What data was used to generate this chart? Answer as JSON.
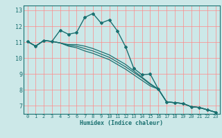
{
  "xlabel": "Humidex (Indice chaleur)",
  "background_color": "#cce8e8",
  "grid_color": "#ff6666",
  "line_color": "#1a7070",
  "xlim": [
    -0.5,
    23.5
  ],
  "ylim": [
    6.5,
    13.3
  ],
  "yticks": [
    7,
    8,
    9,
    10,
    11,
    12,
    13
  ],
  "xticks": [
    0,
    1,
    2,
    3,
    4,
    5,
    6,
    7,
    8,
    9,
    10,
    11,
    12,
    13,
    14,
    15,
    16,
    17,
    18,
    19,
    20,
    21,
    22,
    23
  ],
  "series": [
    [
      11.05,
      10.75,
      11.1,
      11.05,
      11.75,
      11.5,
      11.6,
      12.55,
      12.8,
      12.2,
      12.4,
      11.7,
      10.7,
      9.35,
      8.95,
      9.0,
      8.05,
      7.25,
      7.2,
      7.15,
      6.95,
      6.9,
      6.75,
      6.6
    ],
    [
      11.05,
      10.75,
      11.1,
      11.05,
      10.95,
      10.85,
      10.85,
      10.75,
      10.6,
      10.4,
      10.2,
      9.9,
      9.6,
      9.2,
      8.8,
      8.4,
      8.05,
      7.25,
      7.2,
      7.15,
      6.95,
      6.9,
      6.75,
      6.6
    ],
    [
      11.05,
      10.75,
      11.1,
      11.05,
      10.95,
      10.8,
      10.75,
      10.6,
      10.45,
      10.25,
      10.05,
      9.75,
      9.45,
      9.1,
      8.75,
      8.35,
      8.05,
      7.25,
      7.2,
      7.15,
      6.95,
      6.9,
      6.75,
      6.6
    ],
    [
      11.05,
      10.75,
      11.1,
      11.05,
      10.95,
      10.75,
      10.65,
      10.45,
      10.3,
      10.1,
      9.9,
      9.6,
      9.3,
      8.95,
      8.6,
      8.25,
      8.05,
      7.25,
      7.2,
      7.15,
      6.95,
      6.9,
      6.75,
      6.6
    ]
  ]
}
